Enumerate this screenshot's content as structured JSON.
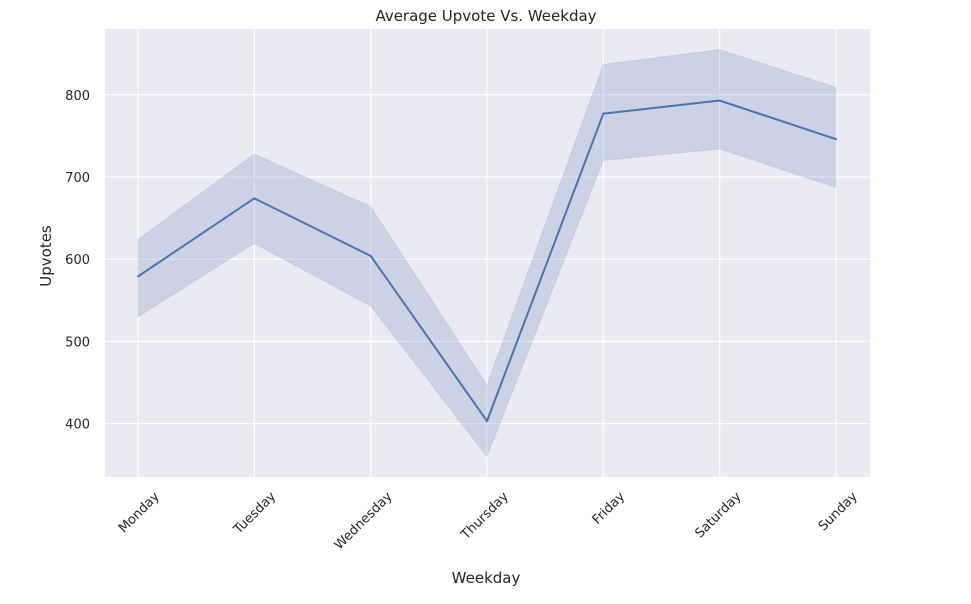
{
  "chart_data": {
    "type": "line",
    "title": "Average Upvote Vs. Weekday",
    "xlabel": "Weekday",
    "ylabel": "Upvotes",
    "categories": [
      "Monday",
      "Tuesday",
      "Wednesday",
      "Thursday",
      "Friday",
      "Saturday",
      "Sunday"
    ],
    "series": [
      {
        "values": [
          579,
          674,
          604,
          403,
          777,
          793,
          746
        ],
        "ci_lower": [
          530,
          619,
          543,
          360,
          720,
          734,
          687
        ],
        "ci_upper": [
          624,
          728,
          664,
          447,
          837,
          855,
          809
        ]
      }
    ],
    "yticks": [
      400,
      500,
      600,
      700,
      800
    ],
    "ylim": [
      335,
      880
    ],
    "grid": true,
    "colors": {
      "line": "#4c72b0",
      "band": "#4c72b0",
      "plot_background": "#eaeaf2",
      "grid": "#ffffff"
    }
  }
}
